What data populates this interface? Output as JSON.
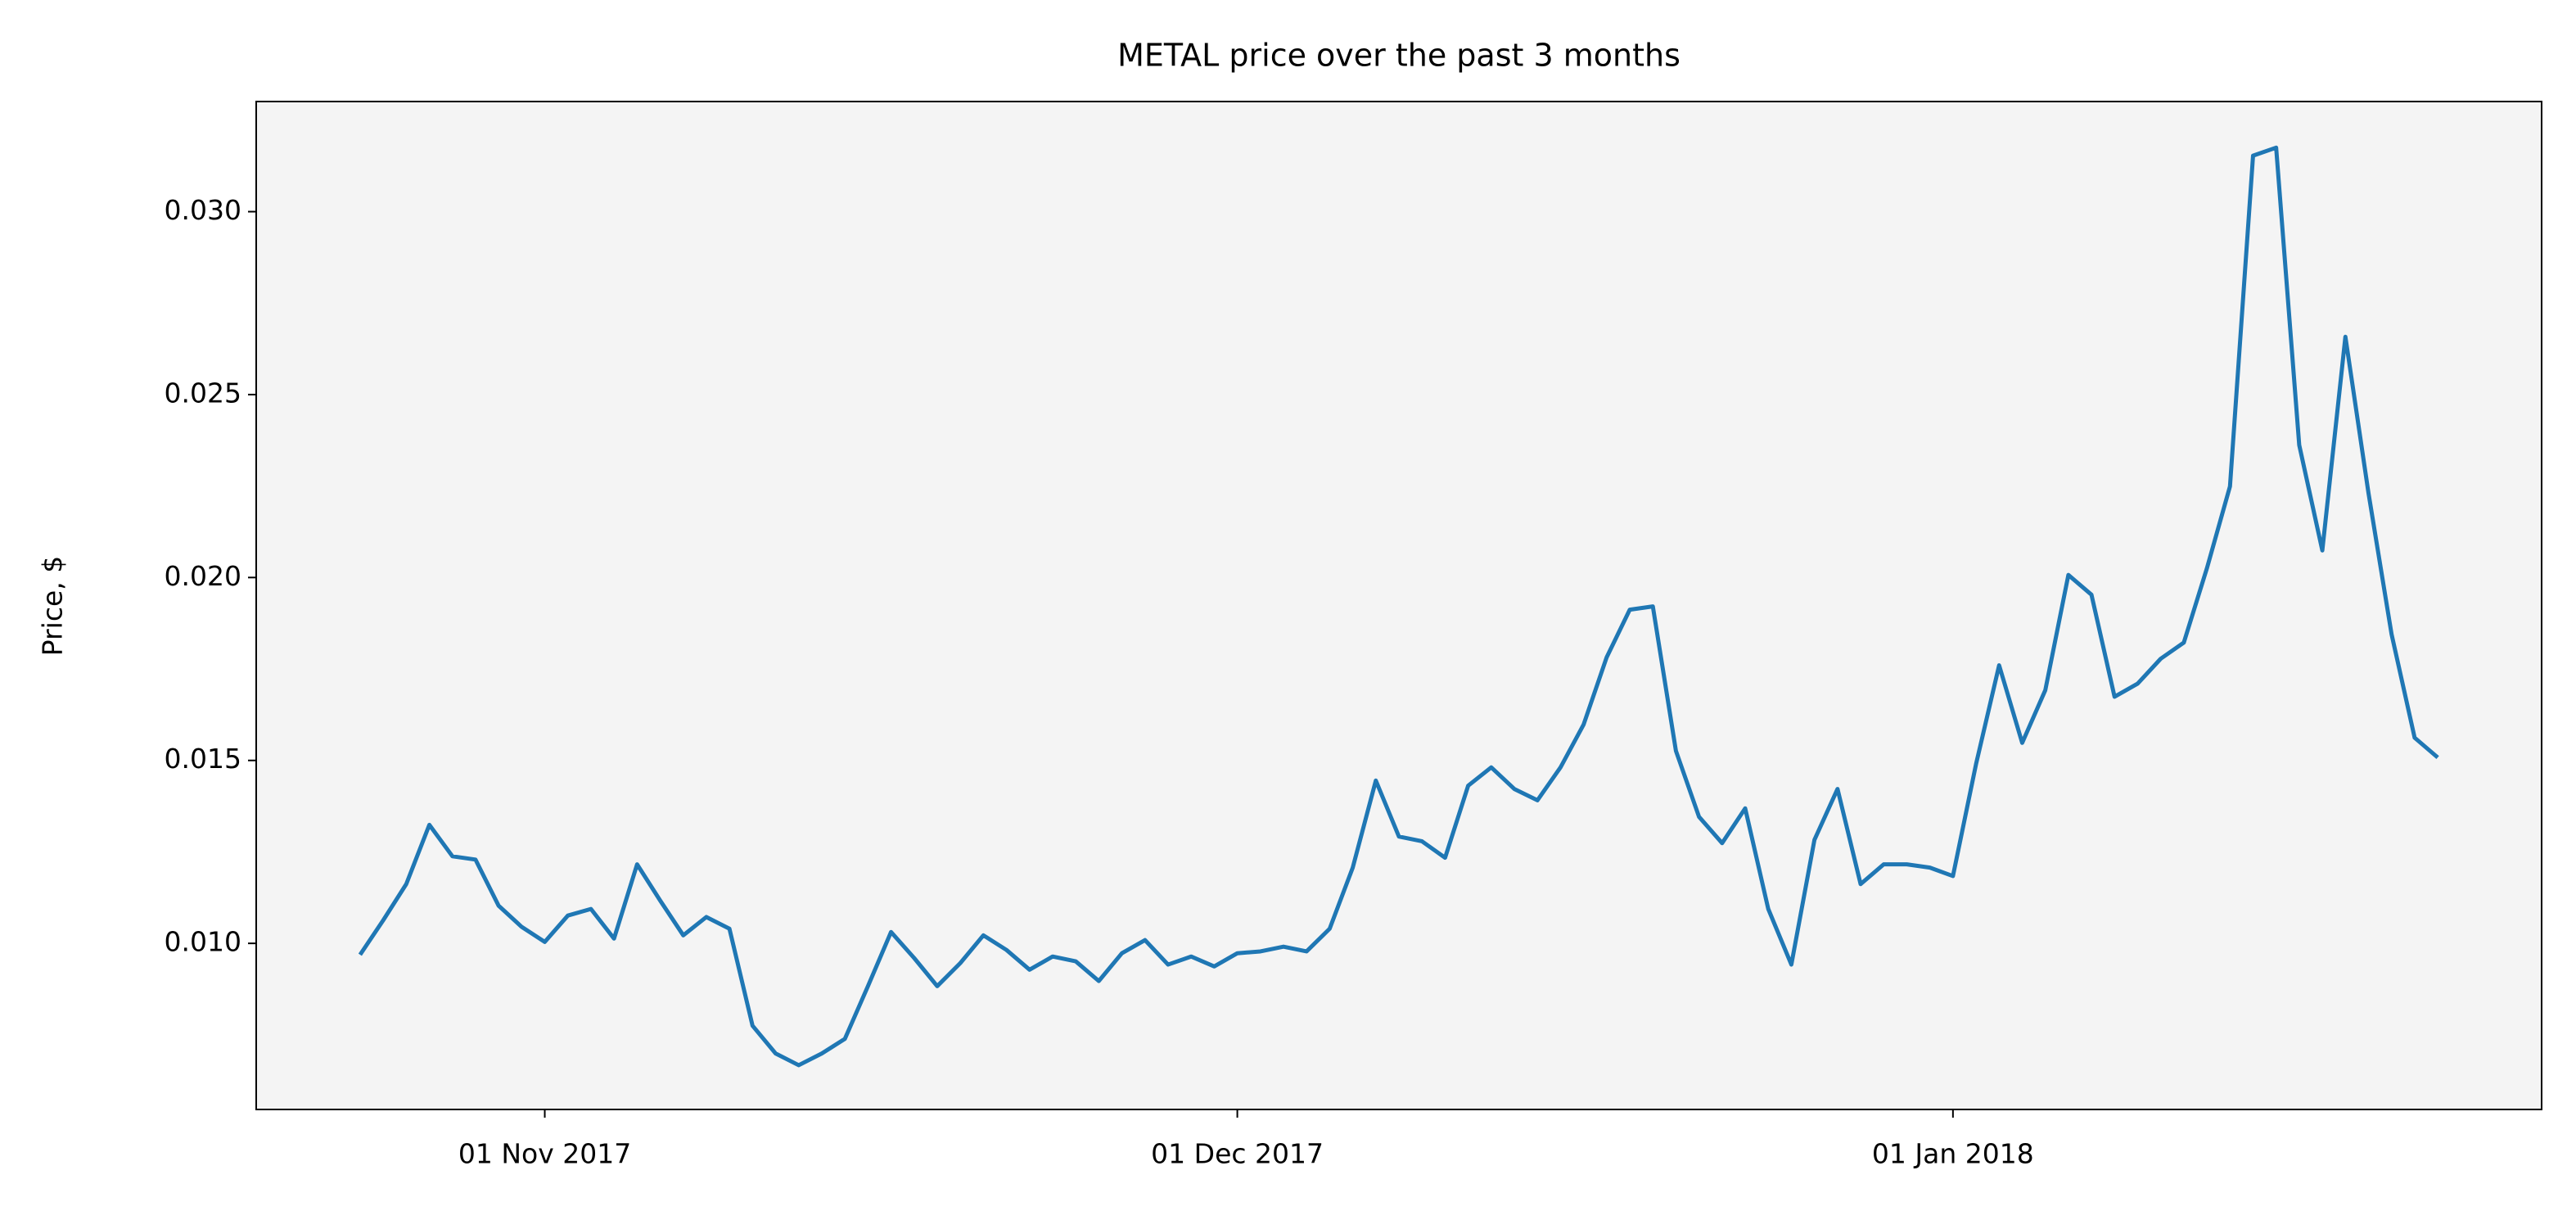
{
  "chart_data": {
    "type": "line",
    "title": "METAL price over the past 3 months",
    "ylabel": "Price, $",
    "color": "#1f77b4",
    "background": "#f4f4f4",
    "x": [
      "2017-10-24",
      "2017-10-25",
      "2017-10-26",
      "2017-10-27",
      "2017-10-28",
      "2017-10-29",
      "2017-10-30",
      "2017-10-31",
      "2017-11-01",
      "2017-11-02",
      "2017-11-03",
      "2017-11-04",
      "2017-11-05",
      "2017-11-06",
      "2017-11-07",
      "2017-11-08",
      "2017-11-09",
      "2017-11-10",
      "2017-11-11",
      "2017-11-12",
      "2017-11-13",
      "2017-11-14",
      "2017-11-15",
      "2017-11-16",
      "2017-11-17",
      "2017-11-18",
      "2017-11-19",
      "2017-11-20",
      "2017-11-21",
      "2017-11-22",
      "2017-11-23",
      "2017-11-24",
      "2017-11-25",
      "2017-11-26",
      "2017-11-27",
      "2017-11-28",
      "2017-11-29",
      "2017-11-30",
      "2017-12-01",
      "2017-12-02",
      "2017-12-03",
      "2017-12-04",
      "2017-12-05",
      "2017-12-06",
      "2017-12-07",
      "2017-12-08",
      "2017-12-09",
      "2017-12-10",
      "2017-12-11",
      "2017-12-12",
      "2017-12-13",
      "2017-12-14",
      "2017-12-15",
      "2017-12-16",
      "2017-12-17",
      "2017-12-18",
      "2017-12-19",
      "2017-12-20",
      "2017-12-21",
      "2017-12-22",
      "2017-12-23",
      "2017-12-24",
      "2017-12-25",
      "2017-12-26",
      "2017-12-27",
      "2017-12-28",
      "2017-12-29",
      "2017-12-30",
      "2017-12-31",
      "2018-01-01",
      "2018-01-02",
      "2018-01-03",
      "2018-01-04",
      "2018-01-05",
      "2018-01-06",
      "2018-01-07",
      "2018-01-08",
      "2018-01-09",
      "2018-01-10",
      "2018-01-11",
      "2018-01-12",
      "2018-01-13",
      "2018-01-14",
      "2018-01-15",
      "2018-01-16",
      "2018-01-17",
      "2018-01-18",
      "2018-01-19",
      "2018-01-20",
      "2018-01-21",
      "2018-01-22"
    ],
    "values": [
      0.00969,
      0.01063,
      0.01162,
      0.01324,
      0.01238,
      0.01229,
      0.01103,
      0.01045,
      0.01004,
      0.01076,
      0.01094,
      0.01013,
      0.01216,
      0.01117,
      0.01022,
      0.01072,
      0.0104,
      0.00775,
      0.00699,
      0.00667,
      0.00699,
      0.00739,
      0.00883,
      0.01031,
      0.0096,
      0.00883,
      0.00946,
      0.01022,
      0.00982,
      0.00928,
      0.00964,
      0.00951,
      0.00897,
      0.00973,
      0.01009,
      0.00942,
      0.00964,
      0.00937,
      0.00973,
      0.00978,
      0.00991,
      0.00978,
      0.0104,
      0.01207,
      0.01445,
      0.01292,
      0.01279,
      0.01234,
      0.01431,
      0.01481,
      0.01422,
      0.01391,
      0.01481,
      0.01598,
      0.01782,
      0.01912,
      0.01921,
      0.01526,
      0.01346,
      0.01274,
      0.01369,
      0.01094,
      0.00942,
      0.01283,
      0.01422,
      0.01162,
      0.01216,
      0.01216,
      0.01207,
      0.01184,
      0.0149,
      0.0176,
      0.01548,
      0.01692,
      0.02007,
      0.01953,
      0.01674,
      0.0171,
      0.01778,
      0.01822,
      0.02025,
      0.02249,
      0.03153,
      0.03175,
      0.02362,
      0.02074,
      0.02658,
      0.02231,
      0.01845,
      0.01562,
      0.01508
    ],
    "xlim": [
      "2017-10-19T12:00:00Z",
      "2018-01-26T12:00:00Z"
    ],
    "xticks": [
      {
        "value": "2017-11-01",
        "label": "01 Nov 2017"
      },
      {
        "value": "2017-12-01",
        "label": "01 Dec 2017"
      },
      {
        "value": "2018-01-01",
        "label": "01 Jan 2018"
      }
    ],
    "ylim": [
      0.00546,
      0.03301
    ],
    "yticks": [
      {
        "value": 0.01,
        "label": "0.010"
      },
      {
        "value": 0.015,
        "label": "0.015"
      },
      {
        "value": 0.02,
        "label": "0.020"
      },
      {
        "value": 0.025,
        "label": "0.025"
      },
      {
        "value": 0.03,
        "label": "0.030"
      }
    ]
  }
}
